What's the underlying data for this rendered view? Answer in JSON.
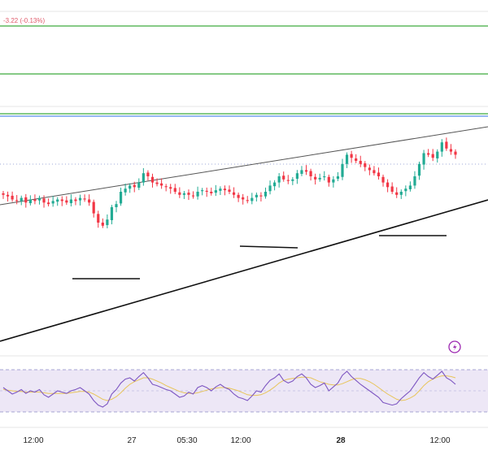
{
  "header": {
    "change_text": "-3.22 (-0.13%)"
  },
  "colors": {
    "up": "#22ab94",
    "down": "#f23645",
    "trendline_upper": "#555555",
    "trendline_lower": "#111111",
    "support": "#111111",
    "horizontal_green": "#3daa3d",
    "horizontal_blue": "#5b8def",
    "rsi_line": "#7e57c2",
    "rsi_ma": "#e8c55a",
    "rsi_band": "#ede7f6",
    "alert_icon": "#9c27b0"
  },
  "icons": {
    "alert": "alert-bolt-icon"
  },
  "chart_data": {
    "type": "candlestick",
    "x_tick_labels": [
      {
        "label": "12:00",
        "bold": false
      },
      {
        "label": "27",
        "bold": false
      },
      {
        "label": "05:30",
        "bold": false
      },
      {
        "label": "12:00",
        "bold": false
      },
      {
        "label": "28",
        "bold": true
      },
      {
        "label": "12:00",
        "bold": false
      }
    ],
    "price_scale": {
      "min": 0,
      "max": 100
    },
    "candles_close": [
      58,
      57,
      55,
      54,
      56,
      53,
      55,
      54,
      56,
      53,
      52,
      54,
      55,
      54,
      53,
      55,
      54,
      56,
      55,
      53,
      46,
      40,
      38,
      42,
      50,
      52,
      60,
      62,
      64,
      63,
      66,
      72,
      70,
      66,
      65,
      64,
      63,
      62,
      60,
      58,
      59,
      58,
      57,
      60,
      61,
      60,
      59,
      61,
      62,
      61,
      60,
      58,
      56,
      55,
      54,
      56,
      58,
      57,
      60,
      64,
      66,
      70,
      68,
      67,
      68,
      72,
      74,
      73,
      70,
      68,
      69,
      70,
      66,
      68,
      70,
      78,
      84,
      82,
      80,
      78,
      76,
      74,
      72,
      70,
      66,
      63,
      60,
      58,
      60,
      62,
      64,
      70,
      78,
      85,
      84,
      82,
      86,
      92,
      88,
      86,
      84
    ],
    "rsi": {
      "range": [
        0,
        100
      ],
      "bands": [
        30,
        70
      ],
      "values": [
        55,
        50,
        45,
        48,
        52,
        46,
        50,
        48,
        52,
        44,
        40,
        45,
        50,
        48,
        46,
        50,
        52,
        55,
        50,
        45,
        35,
        28,
        25,
        30,
        45,
        52,
        62,
        68,
        70,
        65,
        72,
        78,
        70,
        60,
        58,
        55,
        52,
        50,
        45,
        40,
        42,
        48,
        45,
        55,
        58,
        55,
        50,
        56,
        60,
        55,
        52,
        45,
        40,
        38,
        35,
        42,
        50,
        48,
        58,
        66,
        70,
        76,
        66,
        62,
        65,
        72,
        76,
        70,
        60,
        55,
        58,
        62,
        50,
        56,
        62,
        74,
        80,
        72,
        66,
        60,
        55,
        50,
        45,
        40,
        32,
        30,
        28,
        30,
        38,
        44,
        50,
        60,
        70,
        78,
        72,
        68,
        74,
        80,
        70,
        66,
        60
      ],
      "ma": [
        52,
        51,
        50,
        49,
        49,
        48,
        48,
        48,
        48,
        47,
        46,
        46,
        46,
        46,
        46,
        47,
        48,
        49,
        49,
        48,
        45,
        41,
        37,
        35,
        37,
        41,
        47,
        54,
        60,
        64,
        67,
        70,
        70,
        68,
        65,
        62,
        58,
        55,
        52,
        49,
        47,
        46,
        46,
        47,
        49,
        51,
        53,
        54,
        55,
        55,
        54,
        52,
        50,
        47,
        44,
        43,
        43,
        44,
        47,
        51,
        56,
        62,
        66,
        68,
        69,
        70,
        71,
        71,
        70,
        67,
        64,
        62,
        60,
        59,
        59,
        61,
        64,
        67,
        69,
        69,
        67,
        64,
        60,
        55,
        50,
        45,
        41,
        37,
        35,
        36,
        39,
        43,
        50,
        58,
        64,
        68,
        71,
        73,
        73,
        72,
        70
      ]
    }
  }
}
